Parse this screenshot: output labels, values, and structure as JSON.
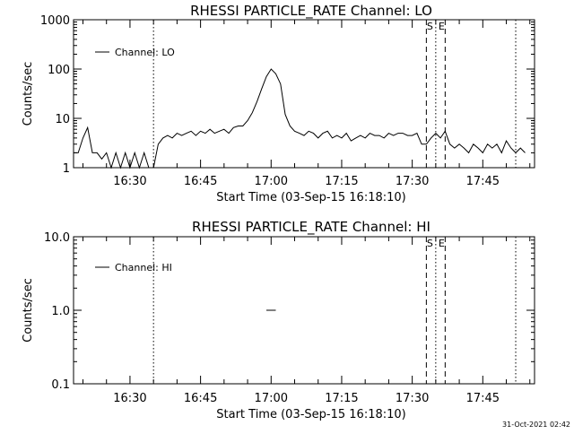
{
  "footer": {
    "timestamp": "31-Oct-2021 02:42"
  },
  "chart_data": [
    {
      "type": "line",
      "title": "RHESSI PARTICLE_RATE Channel: LO",
      "xlabel": "Start Time (03-Sep-15 16:18:10)",
      "ylabel": "Counts/sec",
      "y_scale": "log",
      "xlim": [
        "16:18",
        "17:56"
      ],
      "ylim": [
        1,
        1000
      ],
      "x_ticks": [
        "16:30",
        "16:45",
        "17:00",
        "17:15",
        "17:30",
        "17:45"
      ],
      "y_ticks": [
        "1",
        "10",
        "100",
        "1000"
      ],
      "grid": false,
      "legend": {
        "position": "top-left",
        "entries": [
          "Channel: LO"
        ]
      },
      "markers": [
        {
          "time": "16:35",
          "style": "dotted"
        },
        {
          "time": "17:33",
          "style": "dashed",
          "label": "S"
        },
        {
          "time": "17:35",
          "style": "dotted"
        },
        {
          "time": "17:37",
          "style": "dashed",
          "label": "E"
        },
        {
          "time": "17:52",
          "style": "dotted"
        }
      ],
      "series": [
        {
          "name": "Channel: LO",
          "points": [
            [
              "16:18",
              2.0
            ],
            [
              "16:19",
              2.0
            ],
            [
              "16:20",
              4.0
            ],
            [
              "16:21",
              6.5
            ],
            [
              "16:22",
              2.0
            ],
            [
              "16:23",
              2.0
            ],
            [
              "16:24",
              1.5
            ],
            [
              "16:25",
              2.0
            ],
            [
              "16:26",
              0.7
            ],
            [
              "16:27",
              2.0
            ],
            [
              "16:28",
              0.7
            ],
            [
              "16:29",
              2.0
            ],
            [
              "16:30",
              0.7
            ],
            [
              "16:31",
              2.0
            ],
            [
              "16:32",
              0.7
            ],
            [
              "16:33",
              2.0
            ],
            [
              "16:34",
              0.7
            ],
            [
              "16:35",
              1.0
            ],
            [
              "16:36",
              3.0
            ],
            [
              "16:37",
              4.0
            ],
            [
              "16:38",
              4.5
            ],
            [
              "16:39",
              4.0
            ],
            [
              "16:40",
              5.0
            ],
            [
              "16:41",
              4.5
            ],
            [
              "16:42",
              5.0
            ],
            [
              "16:43",
              5.5
            ],
            [
              "16:44",
              4.5
            ],
            [
              "16:45",
              5.5
            ],
            [
              "16:46",
              5.0
            ],
            [
              "16:47",
              6.0
            ],
            [
              "16:48",
              5.0
            ],
            [
              "16:49",
              5.5
            ],
            [
              "16:50",
              6.0
            ],
            [
              "16:51",
              5.0
            ],
            [
              "16:52",
              6.5
            ],
            [
              "16:53",
              7.0
            ],
            [
              "16:54",
              7.0
            ],
            [
              "16:55",
              9.0
            ],
            [
              "16:56",
              13.0
            ],
            [
              "16:57",
              22.0
            ],
            [
              "16:58",
              40.0
            ],
            [
              "16:59",
              70.0
            ],
            [
              "17:00",
              100.0
            ],
            [
              "17:01",
              80.0
            ],
            [
              "17:02",
              50.0
            ],
            [
              "17:03",
              12.0
            ],
            [
              "17:04",
              7.0
            ],
            [
              "17:05",
              5.5
            ],
            [
              "17:06",
              5.0
            ],
            [
              "17:07",
              4.5
            ],
            [
              "17:08",
              5.5
            ],
            [
              "17:09",
              5.0
            ],
            [
              "17:10",
              4.0
            ],
            [
              "17:11",
              5.0
            ],
            [
              "17:12",
              5.5
            ],
            [
              "17:13",
              4.0
            ],
            [
              "17:14",
              4.5
            ],
            [
              "17:15",
              4.0
            ],
            [
              "17:16",
              5.0
            ],
            [
              "17:17",
              3.5
            ],
            [
              "17:18",
              4.0
            ],
            [
              "17:19",
              4.5
            ],
            [
              "17:20",
              4.0
            ],
            [
              "17:21",
              5.0
            ],
            [
              "17:22",
              4.5
            ],
            [
              "17:23",
              4.5
            ],
            [
              "17:24",
              4.0
            ],
            [
              "17:25",
              5.0
            ],
            [
              "17:26",
              4.5
            ],
            [
              "17:27",
              5.0
            ],
            [
              "17:28",
              5.0
            ],
            [
              "17:29",
              4.5
            ],
            [
              "17:30",
              4.5
            ],
            [
              "17:31",
              5.0
            ],
            [
              "17:32",
              3.0
            ],
            [
              "17:33",
              3.0
            ],
            [
              "17:34",
              4.0
            ],
            [
              "17:35",
              5.0
            ],
            [
              "17:36",
              4.0
            ],
            [
              "17:37",
              5.5
            ],
            [
              "17:38",
              3.0
            ],
            [
              "17:39",
              2.5
            ],
            [
              "17:40",
              3.0
            ],
            [
              "17:41",
              2.5
            ],
            [
              "17:42",
              2.0
            ],
            [
              "17:43",
              3.0
            ],
            [
              "17:44",
              2.5
            ],
            [
              "17:45",
              2.0
            ],
            [
              "17:46",
              3.0
            ],
            [
              "17:47",
              2.5
            ],
            [
              "17:48",
              3.0
            ],
            [
              "17:49",
              2.0
            ],
            [
              "17:50",
              3.5
            ],
            [
              "17:51",
              2.5
            ],
            [
              "17:52",
              2.0
            ],
            [
              "17:53",
              2.5
            ],
            [
              "17:54",
              2.0
            ]
          ]
        }
      ]
    },
    {
      "type": "line",
      "title": "RHESSI PARTICLE_RATE Channel: HI",
      "xlabel": "Start Time (03-Sep-15 16:18:10)",
      "ylabel": "Counts/sec",
      "y_scale": "log",
      "xlim": [
        "16:18",
        "17:56"
      ],
      "ylim": [
        0.1,
        10
      ],
      "x_ticks": [
        "16:30",
        "16:45",
        "17:00",
        "17:15",
        "17:30",
        "17:45"
      ],
      "y_ticks": [
        "0.1",
        "1.0",
        "10.0"
      ],
      "grid": false,
      "legend": {
        "position": "top-left",
        "entries": [
          "Channel: HI"
        ]
      },
      "markers": [
        {
          "time": "16:35",
          "style": "dotted"
        },
        {
          "time": "17:33",
          "style": "dashed",
          "label": "S"
        },
        {
          "time": "17:35",
          "style": "dotted"
        },
        {
          "time": "17:37",
          "style": "dashed",
          "label": "E"
        },
        {
          "time": "17:52",
          "style": "dotted"
        }
      ],
      "series": [
        {
          "name": "Channel: HI",
          "points": [
            [
              "16:59",
              1.0
            ],
            [
              "17:01",
              1.0
            ]
          ]
        }
      ]
    }
  ]
}
